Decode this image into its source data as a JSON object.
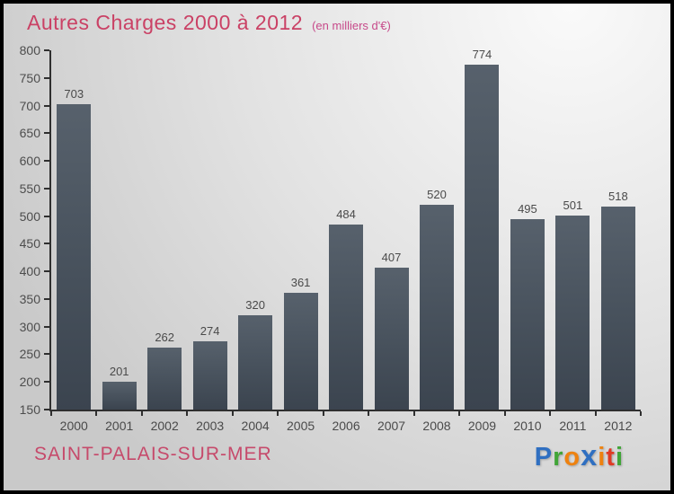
{
  "page": {
    "border_color": "#000000",
    "background_light": "#fafafa",
    "background_dark": "#c9c9c9"
  },
  "header": {
    "title": "Autres Charges 2000 à 2012",
    "subtitle": "(en milliers d'€)",
    "title_color": "#ca4165",
    "subtitle_color": "#c74a8a"
  },
  "chart_data": {
    "type": "bar",
    "title": "Autres Charges 2000 à 2012",
    "subtitle": "(en milliers d'€)",
    "categories": [
      "2000",
      "2001",
      "2002",
      "2003",
      "2004",
      "2005",
      "2006",
      "2007",
      "2008",
      "2009",
      "2010",
      "2011",
      "2012"
    ],
    "values": [
      703,
      201,
      262,
      274,
      320,
      361,
      484,
      407,
      520,
      774,
      495,
      501,
      518
    ],
    "xlabel": "",
    "ylabel": "",
    "ylim": [
      150,
      800
    ],
    "ytick_step": 50,
    "grid": false,
    "legend": false,
    "bar_color_top": "#57616c",
    "bar_color_bottom": "#3b444f",
    "axis_color": "#2f2f2f",
    "tick_label_color": "#4a4a4a",
    "value_label_color": "#4a4a4a"
  },
  "footer": {
    "location": "SAINT-PALAIS-SUR-MER",
    "location_color": "#c64a6b",
    "logo": {
      "name": "Proxiti",
      "letters": [
        {
          "ch": "P",
          "color": "#2f6fc1"
        },
        {
          "ch": "r",
          "color": "#41a538"
        },
        {
          "ch": "o",
          "color": "#ee8210"
        },
        {
          "ch": "x",
          "color": "#2f6fc1",
          "bold": true
        },
        {
          "ch": "i",
          "color": "#ee8210"
        },
        {
          "ch": "t",
          "color": "#df3b24"
        },
        {
          "ch": "i",
          "color": "#41a538"
        }
      ]
    }
  }
}
